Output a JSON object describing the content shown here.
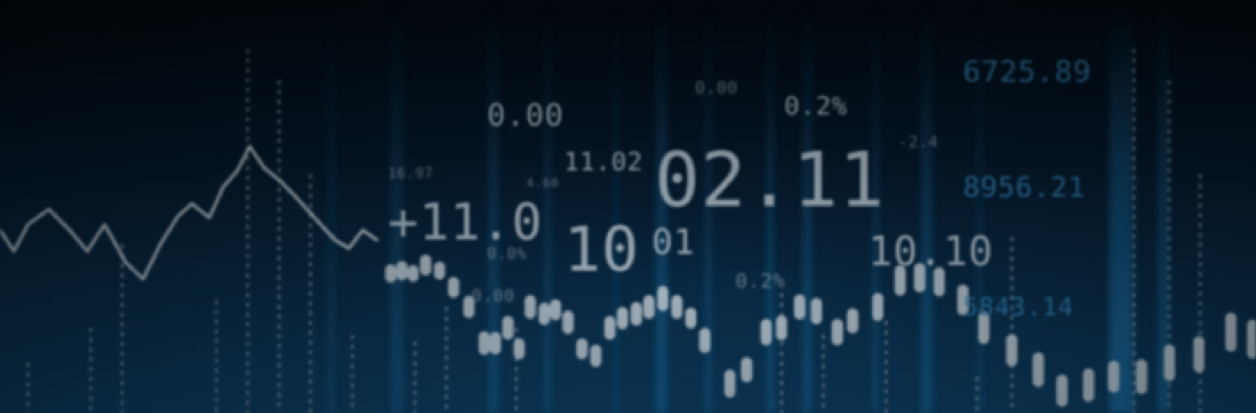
{
  "scene": {
    "kind": "financial ticker background",
    "palette": {
      "background": "#061a2c",
      "accent": "#1f7fb8",
      "glow": "#3fa6de",
      "marks": "#c2ccd3"
    }
  },
  "labels": {
    "n1": "0.00",
    "n2": "0.00",
    "n3": "0.2%",
    "n4": "6725.89",
    "n5": "11.02",
    "n6": "02.11",
    "n7": "-2.4",
    "n8": "+11.0",
    "n9": "10",
    "n10": "01",
    "n11": "8956.21",
    "n12": "10.10",
    "n13": "0.2%",
    "n14": "5843.14",
    "n15": "0.0%",
    "n16": "0.00",
    "n17": "16.97",
    "n18": "4.60"
  }
}
